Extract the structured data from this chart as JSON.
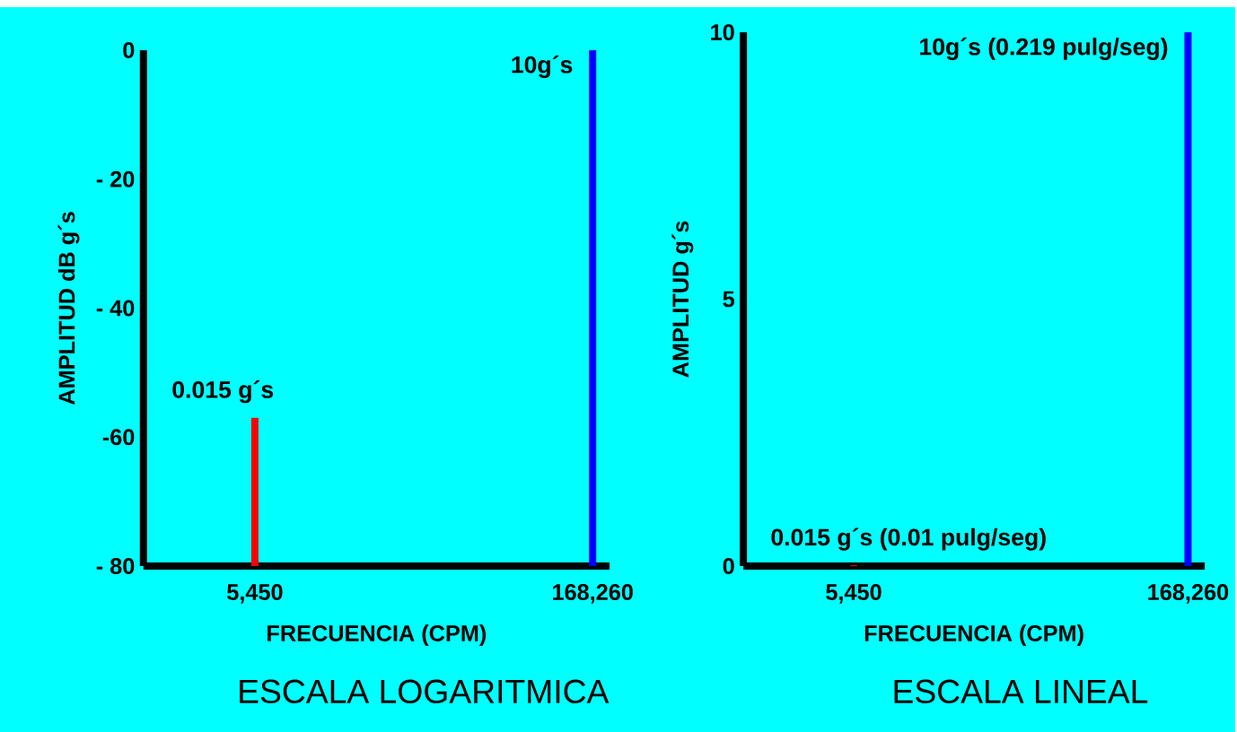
{
  "chart_data": [
    {
      "type": "bar",
      "title": "ESCALA LOGARITMICA",
      "xlabel": "FRECUENCIA (CPM)",
      "ylabel": "AMPLITUD dB g´s",
      "categories": [
        "5,450",
        "168,260"
      ],
      "base": [
        -80,
        -80
      ],
      "values": [
        23,
        80
      ],
      "colors": [
        "#ff0000",
        "#0000ff"
      ],
      "ylim": [
        -80,
        0
      ],
      "yticks": [
        {
          "value": -80,
          "label": "- 80"
        },
        {
          "value": -60,
          "label": "-60"
        },
        {
          "value": -40,
          "label": "- 40"
        },
        {
          "value": -20,
          "label": "- 20"
        },
        0
      ],
      "grid": false,
      "annotations": [
        {
          "text": "0.015 g´s",
          "x": "5,450",
          "y": -57
        },
        {
          "text": "10g´s",
          "x": "168,260",
          "y": 0
        }
      ]
    },
    {
      "type": "bar",
      "title": "ESCALA LINEAL",
      "xlabel": "FRECUENCIA (CPM)",
      "ylabel": "AMPLITUD g´s",
      "categories": [
        "5,450",
        "168,260"
      ],
      "values": [
        0.015,
        10
      ],
      "colors": [
        "#ff0000",
        "#0000ff"
      ],
      "ylim": [
        0,
        10
      ],
      "yticks": [
        0,
        5,
        10
      ],
      "grid": false,
      "annotations": [
        {
          "text": "0.015 g´s (0.01 pulg/seg)",
          "x": "5,450",
          "y": 0.015
        },
        {
          "text": "10g´s (0.219 pulg/seg)",
          "x": "168,260",
          "y": 10
        }
      ]
    }
  ]
}
